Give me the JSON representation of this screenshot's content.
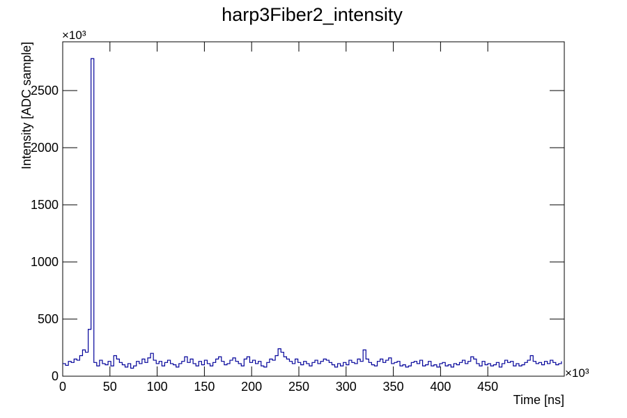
{
  "chart_data": {
    "type": "line",
    "title": "harp3Fiber2_intensity",
    "x_label": "Time [ns]",
    "y_label": "Intensity [ADC sample]",
    "x_exponent": "×10³",
    "y_exponent": "×10³",
    "color": "#000099",
    "xlim": [
      0,
      531
    ],
    "ylim": [
      0,
      2927
    ],
    "xticks": [
      0,
      50,
      100,
      150,
      200,
      250,
      300,
      350,
      400,
      450
    ],
    "yticks": [
      0,
      500,
      1000,
      1500,
      2000,
      2500
    ],
    "x": [
      0,
      3,
      6,
      9,
      12,
      15,
      18,
      21,
      24,
      27,
      30,
      33,
      36,
      39,
      42,
      45,
      48,
      51,
      54,
      57,
      60,
      63,
      66,
      69,
      72,
      75,
      78,
      81,
      84,
      87,
      90,
      93,
      96,
      99,
      102,
      105,
      108,
      111,
      114,
      117,
      120,
      123,
      126,
      129,
      132,
      135,
      138,
      141,
      144,
      147,
      150,
      153,
      156,
      159,
      162,
      165,
      168,
      171,
      174,
      177,
      180,
      183,
      186,
      189,
      192,
      195,
      198,
      201,
      204,
      207,
      210,
      213,
      216,
      219,
      222,
      225,
      228,
      231,
      234,
      237,
      240,
      243,
      246,
      249,
      252,
      255,
      258,
      261,
      264,
      267,
      270,
      273,
      276,
      279,
      282,
      285,
      288,
      291,
      294,
      297,
      300,
      303,
      306,
      309,
      312,
      315,
      318,
      321,
      324,
      327,
      330,
      333,
      336,
      339,
      342,
      345,
      348,
      351,
      354,
      357,
      360,
      363,
      366,
      369,
      372,
      375,
      378,
      381,
      384,
      387,
      390,
      393,
      396,
      399,
      402,
      405,
      408,
      411,
      414,
      417,
      420,
      423,
      426,
      429,
      432,
      435,
      438,
      441,
      444,
      447,
      450,
      453,
      456,
      459,
      462,
      465,
      468,
      471,
      474,
      477,
      480,
      483,
      486,
      489,
      492,
      495,
      498,
      501,
      504,
      507,
      510,
      513,
      516,
      519,
      522,
      525,
      528
    ],
    "values": [
      110,
      95,
      130,
      120,
      150,
      140,
      180,
      230,
      210,
      410,
      2780,
      120,
      90,
      140,
      110,
      100,
      130,
      90,
      180,
      150,
      120,
      100,
      80,
      110,
      70,
      90,
      130,
      110,
      150,
      120,
      160,
      200,
      140,
      110,
      130,
      90,
      120,
      140,
      110,
      100,
      80,
      110,
      130,
      170,
      120,
      150,
      110,
      90,
      130,
      100,
      140,
      110,
      90,
      120,
      150,
      170,
      130,
      100,
      110,
      140,
      160,
      130,
      110,
      90,
      150,
      170,
      120,
      140,
      110,
      130,
      90,
      80,
      120,
      150,
      140,
      180,
      240,
      210,
      170,
      150,
      130,
      110,
      150,
      120,
      100,
      130,
      110,
      90,
      120,
      140,
      110,
      130,
      150,
      140,
      120,
      100,
      80,
      110,
      90,
      120,
      100,
      140,
      120,
      110,
      150,
      130,
      230,
      150,
      120,
      100,
      90,
      130,
      150,
      120,
      140,
      160,
      110,
      120,
      130,
      90,
      100,
      80,
      90,
      120,
      130,
      110,
      140,
      90,
      100,
      130,
      90,
      100,
      80,
      110,
      120,
      90,
      100,
      80,
      110,
      100,
      120,
      140,
      110,
      130,
      170,
      150,
      110,
      90,
      130,
      100,
      110,
      90,
      100,
      120,
      80,
      110,
      140,
      120,
      130,
      90,
      110,
      90,
      100,
      120,
      140,
      180,
      130,
      110,
      120,
      100,
      130,
      110,
      140,
      120,
      100,
      110,
      130
    ]
  }
}
